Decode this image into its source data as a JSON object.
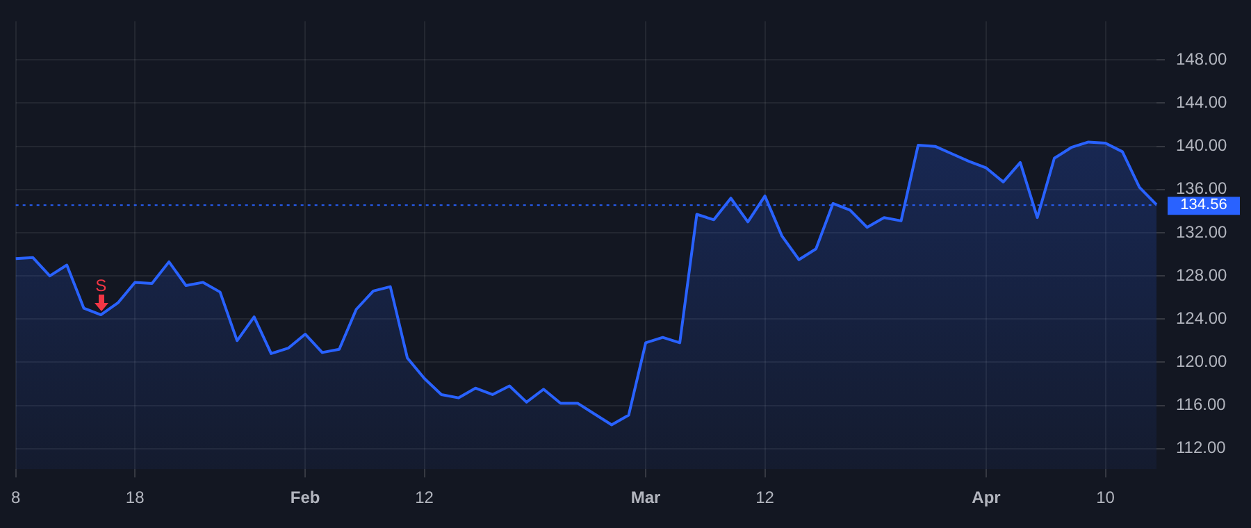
{
  "chart_data": {
    "type": "area",
    "categories": [
      "8",
      null,
      null,
      null,
      null,
      null,
      null,
      "18",
      null,
      null,
      null,
      null,
      null,
      null,
      null,
      null,
      null,
      "Feb",
      null,
      null,
      null,
      null,
      null,
      null,
      "12",
      null,
      null,
      null,
      null,
      null,
      null,
      null,
      null,
      null,
      null,
      null,
      null,
      "Mar",
      null,
      null,
      null,
      null,
      null,
      null,
      "12",
      null,
      null,
      null,
      null,
      null,
      null,
      null,
      null,
      null,
      null,
      null,
      null,
      "Apr",
      null,
      null,
      null,
      null,
      null,
      null,
      "10",
      null,
      null,
      null
    ],
    "series": [
      {
        "color": "#2962ff",
        "values": [
          129.6,
          129.7,
          128.0,
          129.0,
          125.0,
          124.4,
          125.5,
          127.4,
          127.3,
          129.3,
          127.1,
          127.4,
          126.5,
          122.0,
          124.2,
          120.8,
          121.3,
          122.6,
          120.9,
          121.2,
          124.9,
          126.6,
          127.0,
          120.4,
          118.5,
          117.0,
          116.7,
          117.6,
          117.0,
          117.8,
          116.3,
          117.5,
          116.2,
          116.2,
          115.2,
          114.2,
          115.1,
          121.8,
          122.3,
          121.8,
          133.7,
          133.2,
          135.2,
          133.0,
          135.4,
          131.7,
          129.5,
          130.5,
          134.7,
          134.1,
          132.5,
          133.4,
          133.1,
          140.1,
          140.0,
          139.3,
          138.6,
          138.0,
          136.7,
          138.5,
          133.4,
          138.9,
          139.9,
          140.4,
          140.3,
          139.5,
          136.2,
          134.6
        ]
      }
    ],
    "ylim": [
      110.1,
      151.6
    ],
    "yticks": [
      {
        "value": 112,
        "label": "112.00"
      },
      {
        "value": 116,
        "label": "116.00"
      },
      {
        "value": 120,
        "label": "120.00"
      },
      {
        "value": 124,
        "label": "124.00"
      },
      {
        "value": 128,
        "label": "128.00"
      },
      {
        "value": 132,
        "label": "132.00"
      },
      {
        "value": 136,
        "label": "136.00"
      },
      {
        "value": 140,
        "label": "140.00"
      },
      {
        "value": 144,
        "label": "144.00"
      },
      {
        "value": 148,
        "label": "148.00"
      }
    ],
    "ref_lines": [
      {
        "axis": "y",
        "value": 134.56,
        "label": "134.56",
        "color": "#2962ff",
        "line_style": "dotted"
      }
    ],
    "annotations": [
      {
        "text": "S",
        "y": 124.4
      }
    ],
    "grid": true,
    "legend": false,
    "marker": "none",
    "line_style": "solid"
  }
}
